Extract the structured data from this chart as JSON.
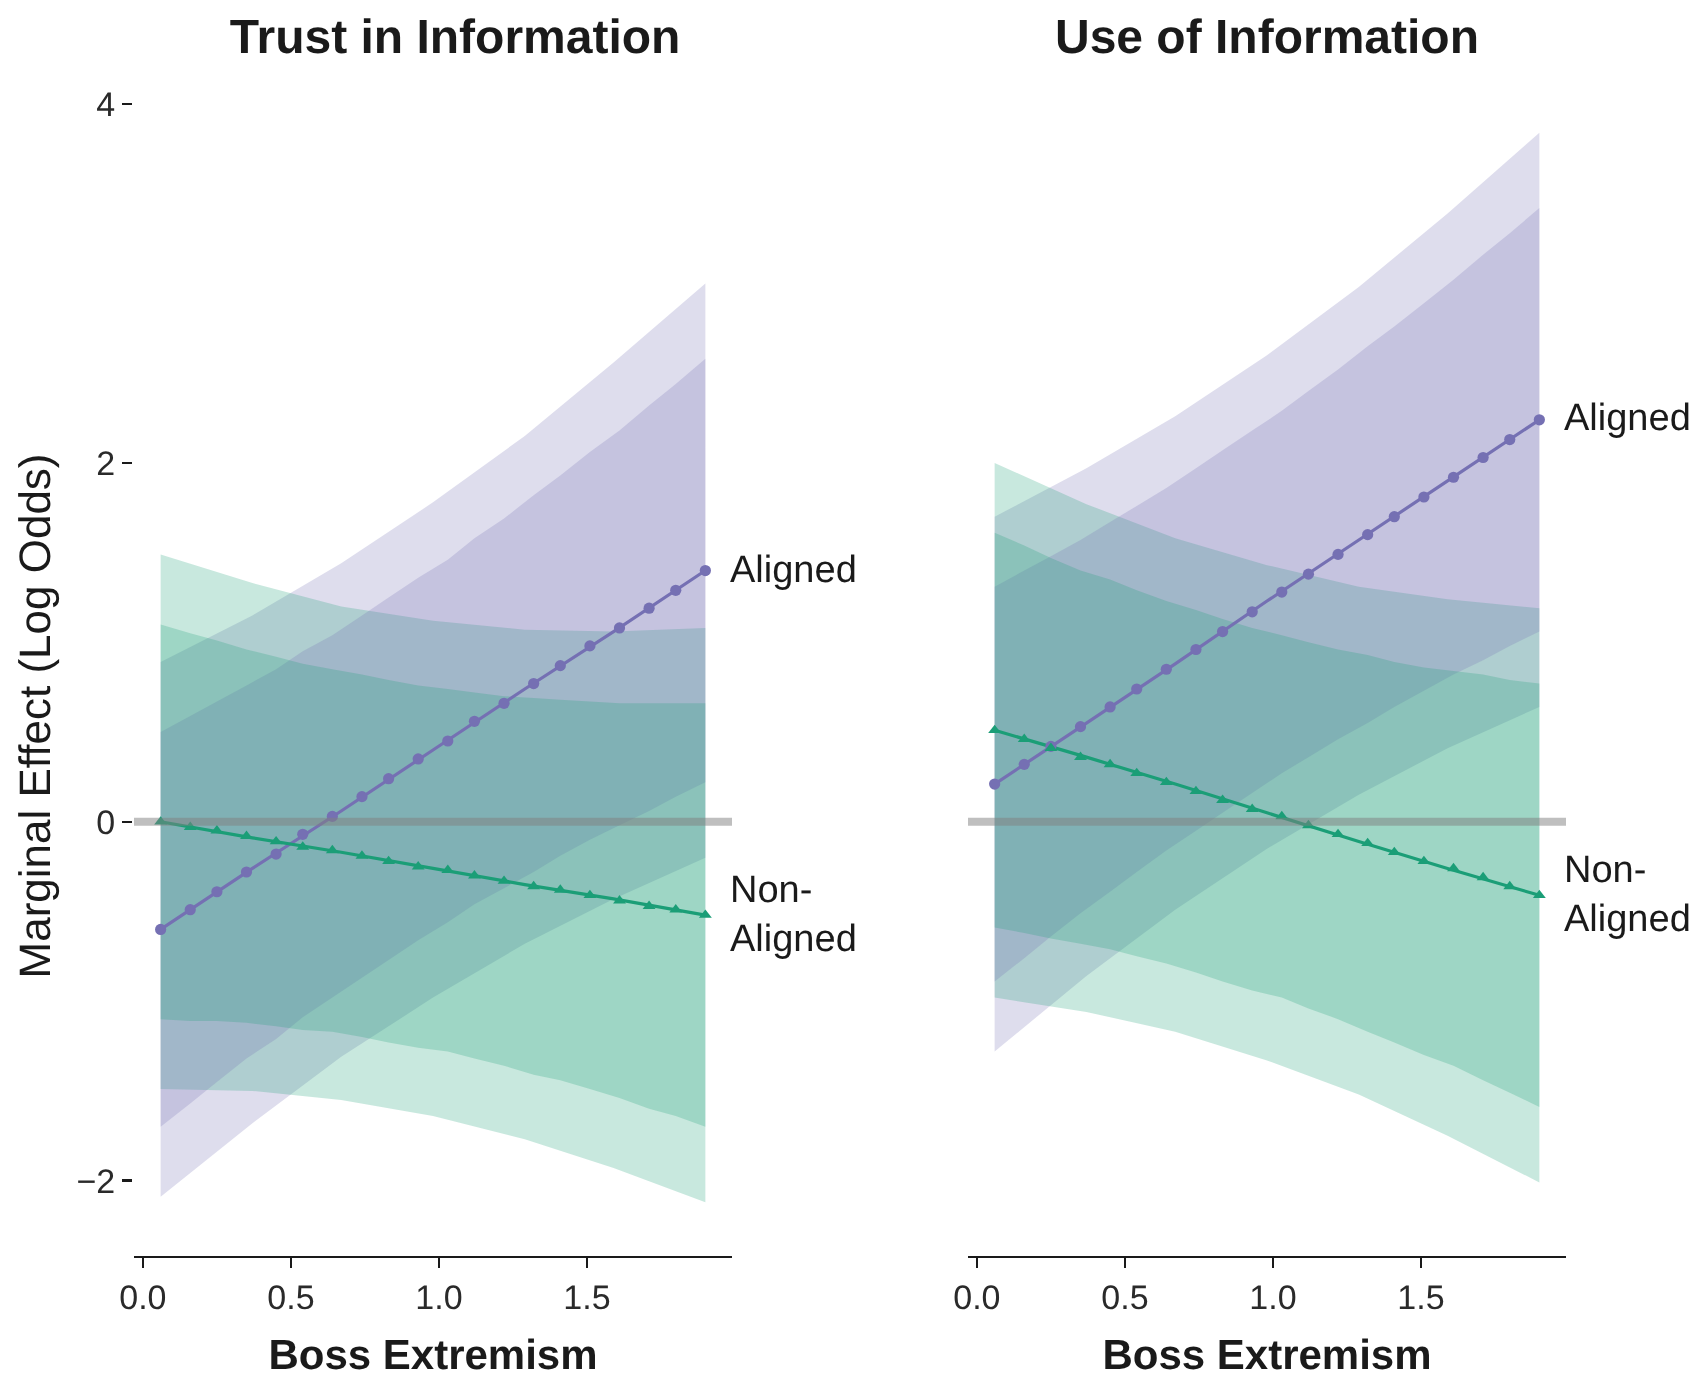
{
  "chart_data": [
    {
      "type": "line",
      "title": "Trust in Information",
      "xlabel": "Boss Extremism",
      "ylabel": "Marginal Effect (Log Odds)",
      "x": [
        0.06,
        0.16,
        0.25,
        0.35,
        0.45,
        0.54,
        0.64,
        0.74,
        0.83,
        0.93,
        1.03,
        1.12,
        1.22,
        1.32,
        1.41,
        1.51,
        1.61,
        1.71,
        1.8,
        1.9
      ],
      "xlim": [
        -0.03,
        1.99
      ],
      "xticks": [
        {
          "value": 0,
          "label": "0.0"
        },
        {
          "value": 0.5,
          "label": "0.5"
        },
        {
          "value": 1,
          "label": "1.0"
        },
        {
          "value": 1.5,
          "label": "1.5"
        }
      ],
      "ylim": [
        -2.42,
        4
      ],
      "yticks": [
        -2,
        0,
        2,
        4
      ],
      "ref_lines": [
        {
          "axis": "y",
          "value": 0,
          "color": "#808080"
        }
      ],
      "series": [
        {
          "color": "#7570b3",
          "marker": "none",
          "x": [
            0.06,
            0.37,
            0.67,
            0.98,
            1.29,
            1.59,
            1.9
          ],
          "values": [
            -0.6,
            -0.26,
            0.06,
            0.4,
            0.74,
            1.06,
            1.4
          ],
          "lower": [
            -2.09,
            -1.68,
            -1.31,
            -0.98,
            -0.68,
            -0.43,
            -0.2
          ],
          "upper": [
            0.89,
            1.15,
            1.44,
            1.78,
            2.15,
            2.56,
            3.0
          ]
        },
        {
          "color": "#1b9e77",
          "marker": "none",
          "x": [
            0.06,
            0.37,
            0.67,
            0.98,
            1.29,
            1.59,
            1.9
          ],
          "values": [
            0.0,
            -0.09,
            -0.17,
            -0.26,
            -0.35,
            -0.43,
            -0.52
          ],
          "lower": [
            -1.49,
            -1.5,
            -1.55,
            -1.64,
            -1.77,
            -1.93,
            -2.12
          ],
          "upper": [
            1.49,
            1.33,
            1.2,
            1.12,
            1.07,
            1.06,
            1.08
          ]
        },
        {
          "type": "scatter",
          "name": "Aligned",
          "color": "#7570b3",
          "marker": "circle",
          "values": [
            -0.6,
            -0.49,
            -0.39,
            -0.28,
            -0.18,
            -0.07,
            0.03,
            0.14,
            0.24,
            0.35,
            0.45,
            0.56,
            0.66,
            0.77,
            0.87,
            0.98,
            1.08,
            1.19,
            1.29,
            1.4
          ],
          "lower": [
            -1.7,
            -1.57,
            -1.45,
            -1.32,
            -1.21,
            -1.09,
            -0.98,
            -0.87,
            -0.77,
            -0.66,
            -0.56,
            -0.46,
            -0.37,
            -0.28,
            -0.19,
            -0.1,
            -0.02,
            0.06,
            0.14,
            0.22
          ],
          "upper": [
            0.5,
            0.59,
            0.67,
            0.76,
            0.85,
            0.95,
            1.04,
            1.15,
            1.25,
            1.36,
            1.46,
            1.58,
            1.69,
            1.82,
            1.93,
            2.06,
            2.18,
            2.32,
            2.44,
            2.58
          ]
        },
        {
          "type": "scatter",
          "name": "Non-Aligned",
          "color": "#1b9e77",
          "marker": "triangle",
          "values": [
            0.0,
            -0.03,
            -0.05,
            -0.08,
            -0.11,
            -0.14,
            -0.16,
            -0.19,
            -0.22,
            -0.25,
            -0.27,
            -0.3,
            -0.33,
            -0.36,
            -0.38,
            -0.41,
            -0.44,
            -0.47,
            -0.49,
            -0.52
          ],
          "lower": [
            -1.1,
            -1.11,
            -1.11,
            -1.12,
            -1.14,
            -1.16,
            -1.17,
            -1.2,
            -1.23,
            -1.26,
            -1.28,
            -1.32,
            -1.36,
            -1.41,
            -1.44,
            -1.49,
            -1.54,
            -1.6,
            -1.64,
            -1.7
          ],
          "upper": [
            1.1,
            1.05,
            1.01,
            0.96,
            0.92,
            0.88,
            0.85,
            0.82,
            0.79,
            0.76,
            0.74,
            0.72,
            0.7,
            0.69,
            0.68,
            0.67,
            0.66,
            0.66,
            0.66,
            0.66
          ]
        }
      ]
    },
    {
      "type": "line",
      "title": "Use of Information",
      "xlabel": "Boss Extremism",
      "tick_labels": "x",
      "x": [
        0.06,
        0.16,
        0.25,
        0.35,
        0.45,
        0.54,
        0.64,
        0.74,
        0.83,
        0.93,
        1.03,
        1.12,
        1.22,
        1.32,
        1.41,
        1.51,
        1.61,
        1.71,
        1.8,
        1.9
      ],
      "xlim": [
        -0.03,
        1.99
      ],
      "xticks": [
        {
          "value": 0,
          "label": "0.0"
        },
        {
          "value": 0.5,
          "label": "0.5"
        },
        {
          "value": 1,
          "label": "1.0"
        },
        {
          "value": 1.5,
          "label": "1.5"
        }
      ],
      "ylim": [
        -2.42,
        4
      ],
      "ref_lines": [
        {
          "axis": "y",
          "value": 0,
          "color": "#808080"
        }
      ],
      "series": [
        {
          "color": "#7570b3",
          "marker": "none",
          "x": [
            0.06,
            0.37,
            0.67,
            0.98,
            1.29,
            1.59,
            1.9
          ],
          "values": [
            0.21,
            0.55,
            0.88,
            1.23,
            1.57,
            1.9,
            2.24
          ],
          "lower": [
            -1.28,
            -0.86,
            -0.49,
            -0.15,
            0.15,
            0.41,
            0.64
          ],
          "upper": [
            1.7,
            1.97,
            2.26,
            2.6,
            2.98,
            3.39,
            3.84
          ]
        },
        {
          "color": "#1b9e77",
          "marker": "none",
          "x": [
            0.06,
            0.37,
            0.67,
            0.98,
            1.29,
            1.59,
            1.9
          ],
          "values": [
            0.51,
            0.36,
            0.21,
            0.05,
            -0.11,
            -0.26,
            -0.41
          ],
          "lower": [
            -0.98,
            -1.06,
            -1.17,
            -1.33,
            -1.52,
            -1.75,
            -2.01
          ],
          "upper": [
            2.0,
            1.77,
            1.58,
            1.43,
            1.31,
            1.24,
            1.19
          ]
        },
        {
          "type": "scatter",
          "name": "Aligned",
          "color": "#7570b3",
          "marker": "circle",
          "values": [
            0.21,
            0.32,
            0.42,
            0.53,
            0.64,
            0.74,
            0.85,
            0.96,
            1.06,
            1.17,
            1.28,
            1.38,
            1.49,
            1.6,
            1.7,
            1.81,
            1.92,
            2.03,
            2.13,
            2.24
          ],
          "lower": [
            -0.89,
            -0.76,
            -0.64,
            -0.51,
            -0.39,
            -0.28,
            -0.16,
            -0.05,
            0.05,
            0.16,
            0.27,
            0.36,
            0.46,
            0.55,
            0.64,
            0.73,
            0.82,
            0.9,
            0.98,
            1.06
          ],
          "upper": [
            1.31,
            1.4,
            1.48,
            1.57,
            1.67,
            1.76,
            1.86,
            1.97,
            2.07,
            2.18,
            2.29,
            2.4,
            2.52,
            2.65,
            2.76,
            2.89,
            3.02,
            3.16,
            3.28,
            3.42
          ]
        },
        {
          "type": "scatter",
          "name": "Non-Aligned",
          "color": "#1b9e77",
          "marker": "triangle",
          "values": [
            0.51,
            0.46,
            0.41,
            0.36,
            0.32,
            0.27,
            0.22,
            0.17,
            0.12,
            0.07,
            0.03,
            -0.02,
            -0.07,
            -0.12,
            -0.17,
            -0.22,
            -0.26,
            -0.31,
            -0.36,
            -0.41
          ],
          "lower": [
            -0.59,
            -0.62,
            -0.65,
            -0.68,
            -0.71,
            -0.75,
            -0.79,
            -0.84,
            -0.89,
            -0.94,
            -0.98,
            -1.04,
            -1.1,
            -1.17,
            -1.23,
            -1.3,
            -1.36,
            -1.44,
            -1.51,
            -1.59
          ],
          "upper": [
            1.61,
            1.54,
            1.47,
            1.4,
            1.35,
            1.29,
            1.23,
            1.18,
            1.13,
            1.08,
            1.04,
            1.0,
            0.96,
            0.93,
            0.89,
            0.86,
            0.84,
            0.82,
            0.79,
            0.77
          ]
        }
      ]
    }
  ]
}
